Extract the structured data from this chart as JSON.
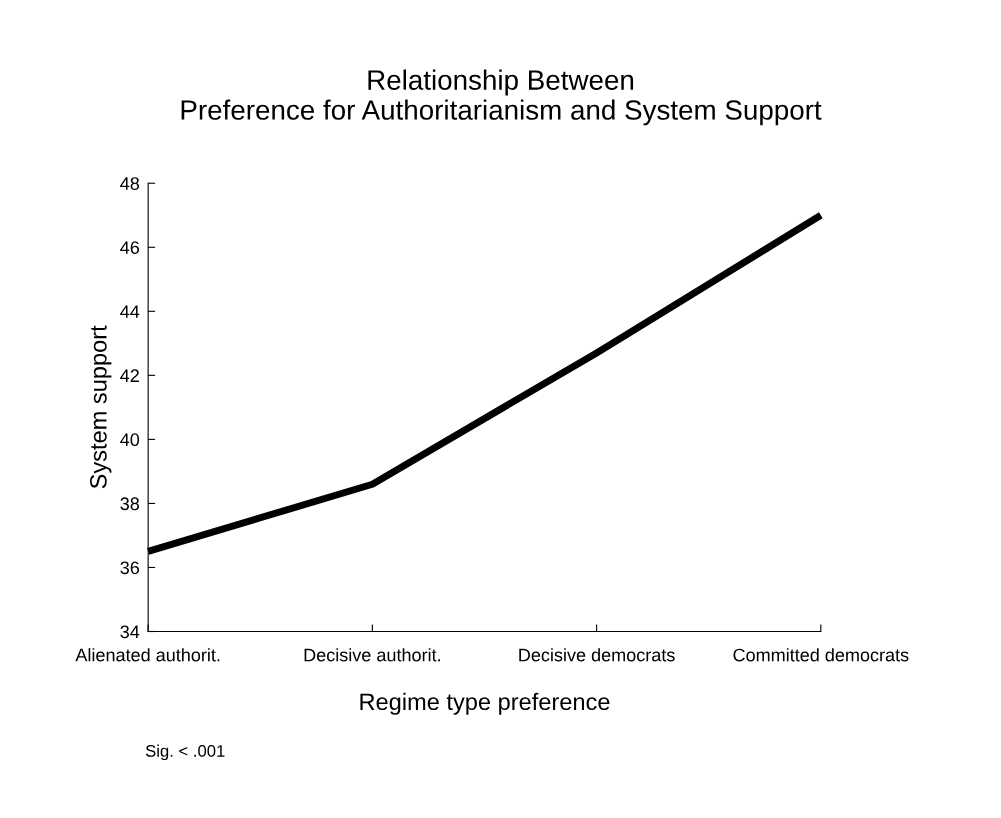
{
  "chart_data": {
    "type": "line",
    "title": "Relationship Between\nPreference for Authoritarianism and System Support",
    "xlabel": "Regime type preference",
    "ylabel": "System support",
    "categories": [
      "Alienated authorit.",
      "Decisive authorit.",
      "Decisive democrats",
      "Committed democrats"
    ],
    "series": [
      {
        "color": "#000000",
        "values": [
          36.5,
          38.6,
          42.7,
          47.0
        ]
      }
    ],
    "ylim": [
      34,
      48
    ],
    "yticks": [
      34,
      36,
      38,
      40,
      42,
      44,
      46,
      48
    ],
    "grid": false,
    "marker": "none",
    "line_style": "solid",
    "annotations": [
      "Sig. < .001"
    ]
  }
}
